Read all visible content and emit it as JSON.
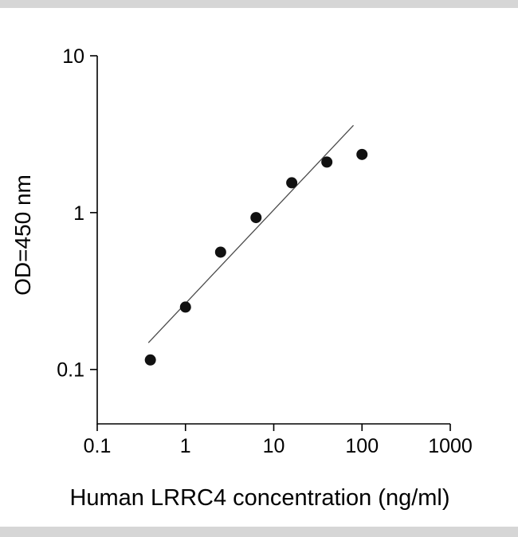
{
  "figure": {
    "x_axis_title": "Human LRRC4 concentration (ng/ml)",
    "y_axis_title": "OD=450 nm"
  },
  "chart_data": {
    "type": "scatter",
    "title": "",
    "xlabel": "Human LRRC4 concentration (ng/ml)",
    "ylabel": "OD=450 nm",
    "x_scale": "log",
    "y_scale": "log",
    "xlim": [
      0.1,
      1000
    ],
    "ylim": [
      0.045,
      10
    ],
    "x": [
      0.4,
      1,
      2.5,
      6.3,
      16,
      40,
      100
    ],
    "y": [
      0.115,
      0.25,
      0.56,
      0.93,
      1.55,
      2.1,
      2.35
    ],
    "fit_line": {
      "x": [
        0.38,
        80
      ],
      "y": [
        0.148,
        3.6
      ]
    },
    "x_ticks": [
      0.1,
      1,
      10,
      100,
      1000
    ],
    "x_tick_labels": [
      "0.1",
      "1",
      "10",
      "100",
      "1000"
    ],
    "y_ticks": [
      0.1,
      1,
      10
    ],
    "y_tick_labels": [
      "0.1",
      "1",
      "10"
    ],
    "grid": false,
    "legend": false,
    "marker_color": "#111111",
    "marker_radius": 7,
    "line_color": "#4a4a4a",
    "axis_color": "#000000"
  }
}
